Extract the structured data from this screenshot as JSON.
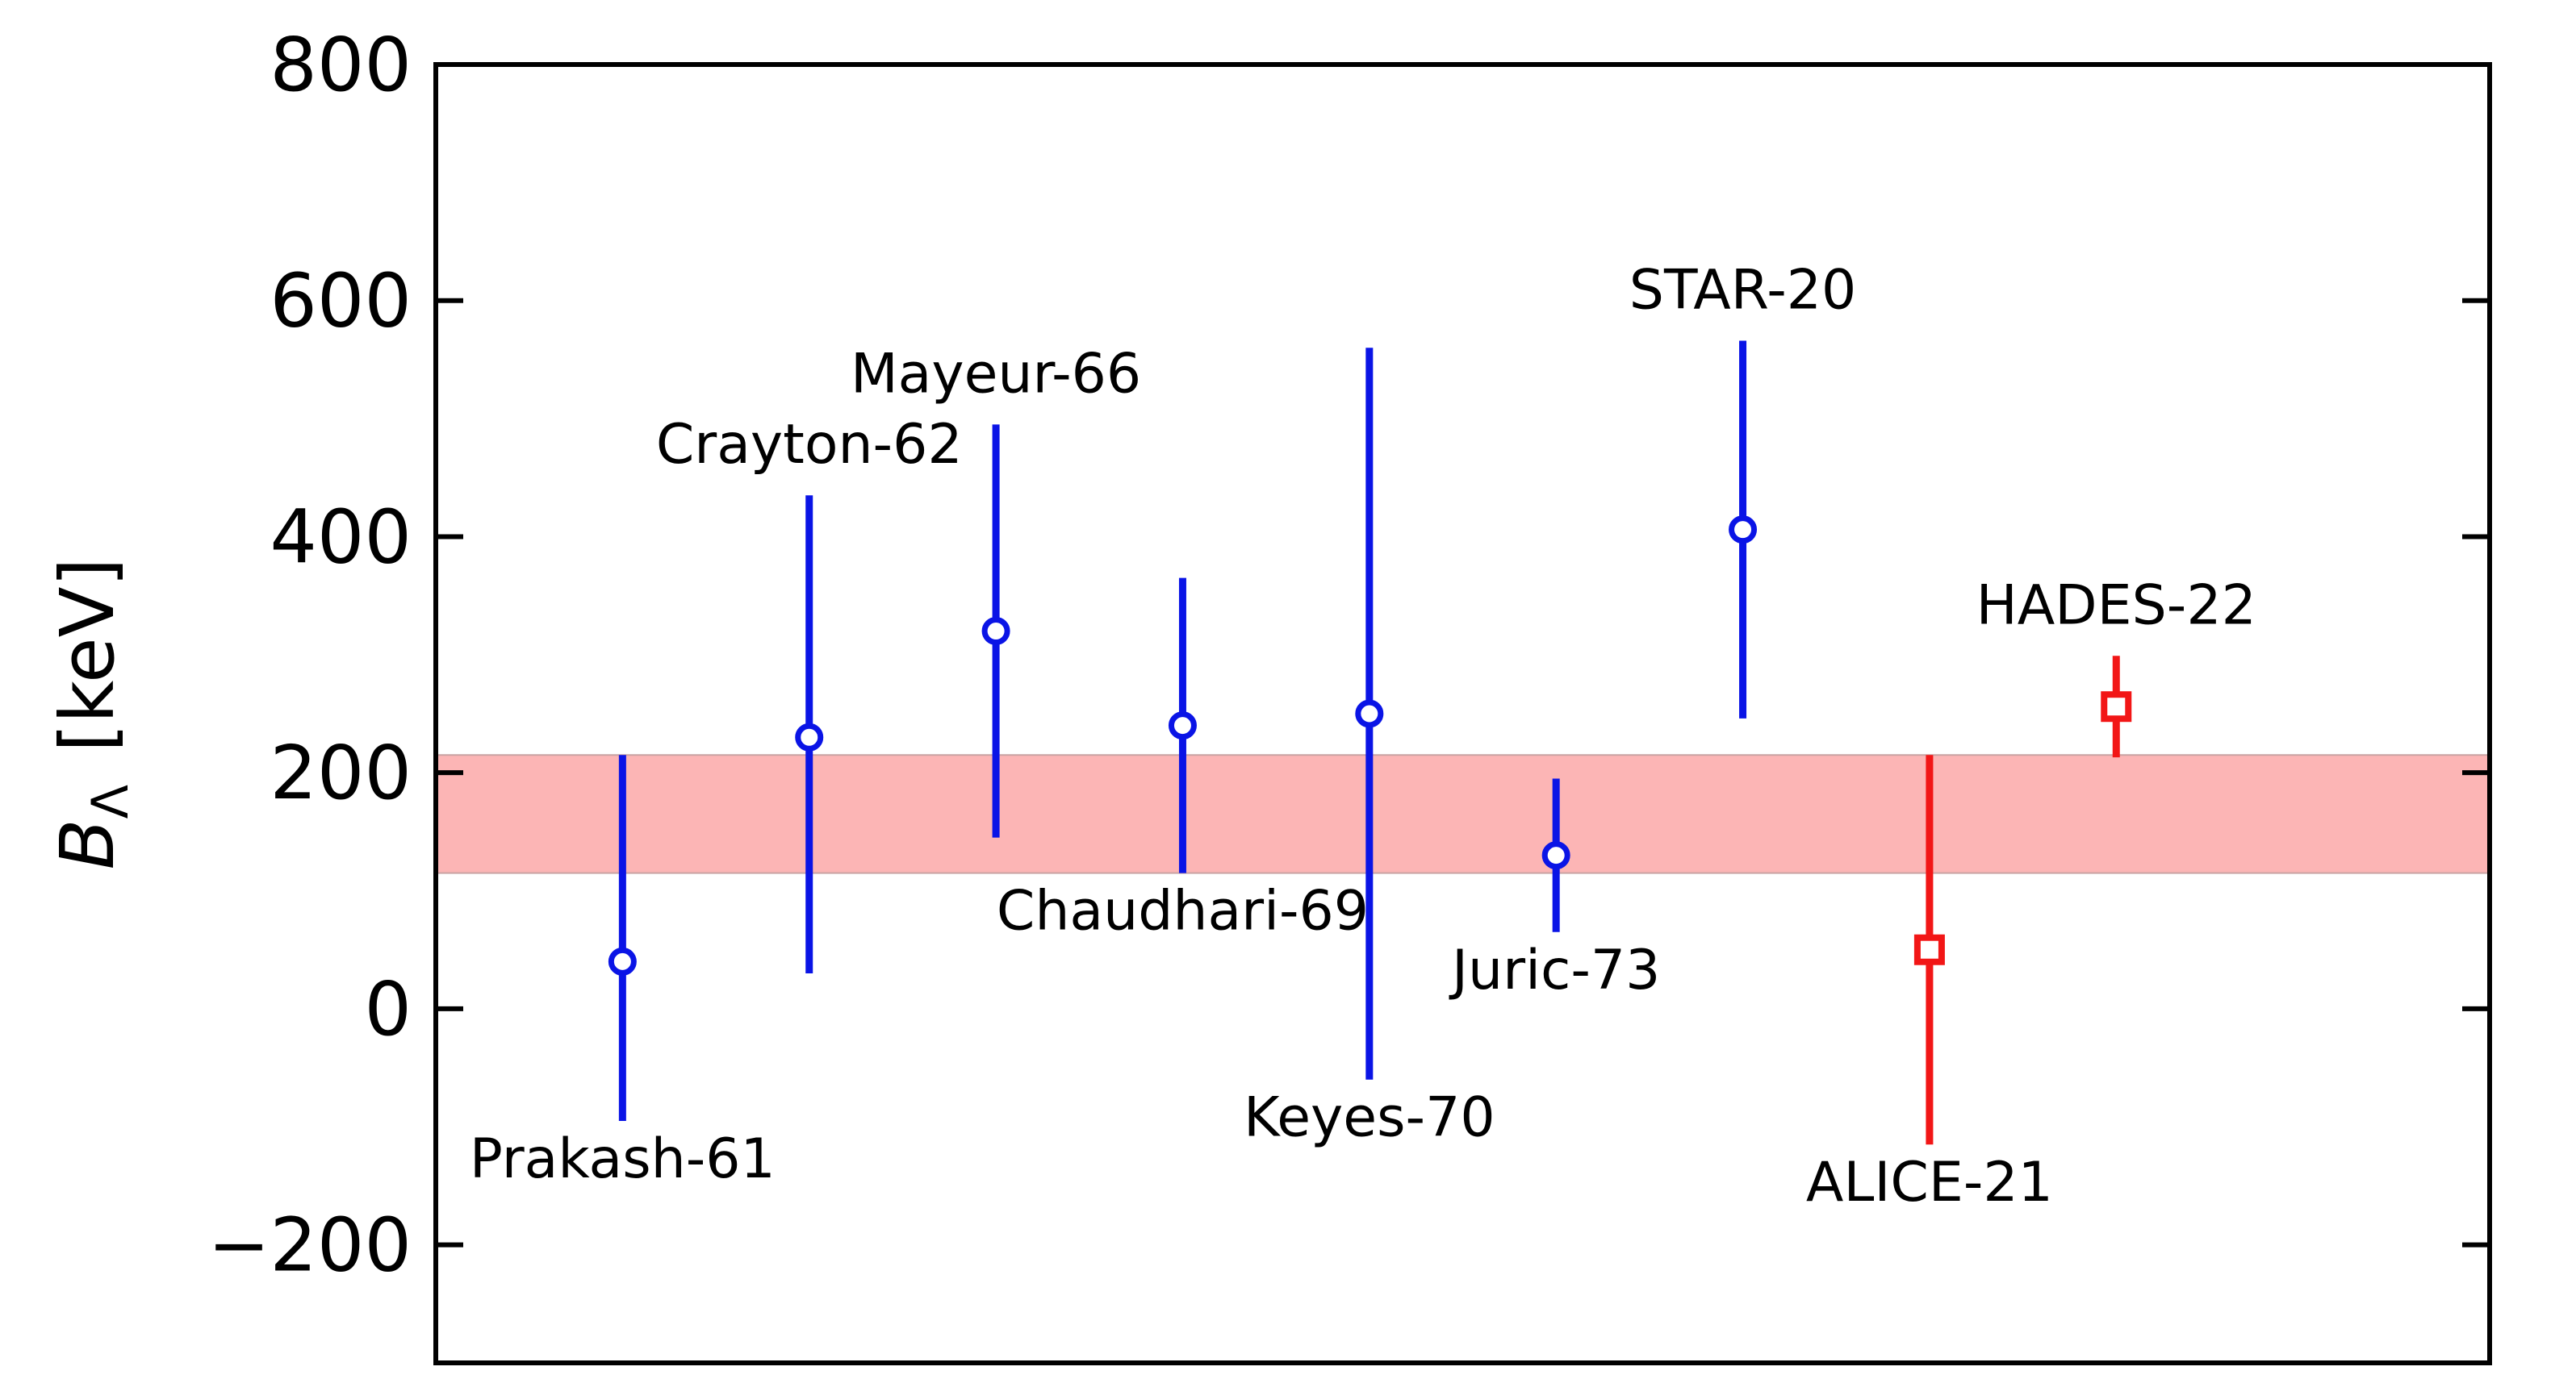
{
  "chart_data": {
    "type": "scatter",
    "title": "",
    "xlabel": "",
    "ylabel": "B_Λ [keV]",
    "ylabel_parts": {
      "symbol": "B",
      "subscript": "Λ",
      "unit": "[keV]"
    },
    "ylim": [
      -300,
      800
    ],
    "yticks": [
      -200,
      0,
      200,
      400,
      600,
      800
    ],
    "ytick_labels": [
      "−200",
      "0",
      "200",
      "400",
      "600",
      "800"
    ],
    "xlim": [
      0,
      11
    ],
    "grid": false,
    "band": {
      "low": 115,
      "high": 215,
      "color": "#fcb5b5"
    },
    "points": [
      {
        "label": "Prakash-61",
        "x": 1,
        "y": 40,
        "err_low": 135,
        "err_high": 175,
        "marker": "circle",
        "color": "#0a14e6",
        "label_side": "below"
      },
      {
        "label": "Crayton-62",
        "x": 2,
        "y": 230,
        "err_low": 200,
        "err_high": 205,
        "marker": "circle",
        "color": "#0a14e6",
        "label_side": "above"
      },
      {
        "label": "Mayeur-66",
        "x": 3,
        "y": 320,
        "err_low": 175,
        "err_high": 175,
        "marker": "circle",
        "color": "#0a14e6",
        "label_side": "above"
      },
      {
        "label": "Chaudhari-69",
        "x": 4,
        "y": 240,
        "err_low": 125,
        "err_high": 125,
        "marker": "circle",
        "color": "#0a14e6",
        "label_side": "below"
      },
      {
        "label": "Keyes-70",
        "x": 5,
        "y": 250,
        "err_low": 310,
        "err_high": 310,
        "marker": "circle",
        "color": "#0a14e6",
        "label_side": "below"
      },
      {
        "label": "Juric-73",
        "x": 6,
        "y": 130,
        "err_low": 65,
        "err_high": 65,
        "marker": "circle",
        "color": "#0a14e6",
        "label_side": "below"
      },
      {
        "label": "STAR-20",
        "x": 7,
        "y": 406,
        "err_low": 160,
        "err_high": 160,
        "marker": "circle",
        "color": "#0a14e6",
        "label_side": "above"
      },
      {
        "label": "ALICE-21",
        "x": 8,
        "y": 50,
        "err_low": 165,
        "err_high": 165,
        "marker": "square",
        "color": "#f21616",
        "label_side": "below"
      },
      {
        "label": "HADES-22",
        "x": 9,
        "y": 256,
        "err_low": 43,
        "err_high": 43,
        "marker": "square",
        "color": "#f21616",
        "label_side": "above"
      }
    ]
  }
}
